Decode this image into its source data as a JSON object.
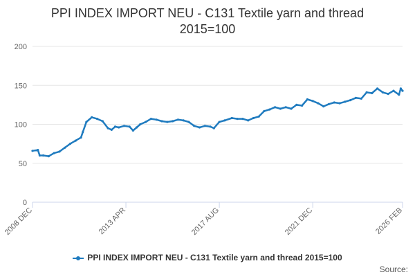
{
  "title_lines": [
    "PPI INDEX IMPORT NEU - C131 Textile yarn and thread",
    "2015=100"
  ],
  "credits": "Source:",
  "colors": {
    "series": "#1f7bbf",
    "grid": "#e6e6e6",
    "axis_text": "#666666"
  },
  "chart_data": {
    "type": "line",
    "title": "PPI INDEX IMPORT NEU - C131 Textile yarn and thread 2015=100",
    "xlabel": "",
    "ylabel": "",
    "ylim": [
      0,
      200
    ],
    "y_ticks": [
      0,
      50,
      100,
      150,
      200
    ],
    "x_range": [
      "2008-12",
      "2026-02"
    ],
    "x_tick_labels": [
      {
        "date": "2008-12",
        "label": "2008 DEC"
      },
      {
        "date": "2013-04",
        "label": "2013 APR"
      },
      {
        "date": "2017-08",
        "label": "2017 AUG"
      },
      {
        "date": "2021-12",
        "label": "2021 DEC"
      },
      {
        "date": "2026-02",
        "label": "2026 FEB"
      }
    ],
    "grid": true,
    "legend": "bottom-center",
    "series": [
      {
        "name": "PPI INDEX IMPORT NEU - C131 Textile yarn and thread 2015=100",
        "points": [
          [
            "2008-12",
            66
          ],
          [
            "2009-03",
            67
          ],
          [
            "2009-04",
            60
          ],
          [
            "2009-06",
            60
          ],
          [
            "2009-09",
            59
          ],
          [
            "2009-12",
            63
          ],
          [
            "2010-03",
            65
          ],
          [
            "2010-06",
            70
          ],
          [
            "2010-09",
            75
          ],
          [
            "2010-12",
            79
          ],
          [
            "2011-03",
            83
          ],
          [
            "2011-04",
            90
          ],
          [
            "2011-06",
            103
          ],
          [
            "2011-09",
            109
          ],
          [
            "2011-12",
            107
          ],
          [
            "2012-03",
            104
          ],
          [
            "2012-06",
            95
          ],
          [
            "2012-08",
            93
          ],
          [
            "2012-10",
            97
          ],
          [
            "2012-12",
            96
          ],
          [
            "2013-03",
            98
          ],
          [
            "2013-06",
            97
          ],
          [
            "2013-08",
            92
          ],
          [
            "2013-10",
            96
          ],
          [
            "2013-12",
            100
          ],
          [
            "2014-03",
            103
          ],
          [
            "2014-06",
            107
          ],
          [
            "2014-09",
            106
          ],
          [
            "2014-12",
            104
          ],
          [
            "2015-03",
            103
          ],
          [
            "2015-06",
            104
          ],
          [
            "2015-09",
            106
          ],
          [
            "2015-12",
            105
          ],
          [
            "2016-03",
            103
          ],
          [
            "2016-06",
            98
          ],
          [
            "2016-09",
            96
          ],
          [
            "2016-12",
            98
          ],
          [
            "2017-03",
            97
          ],
          [
            "2017-05",
            95
          ],
          [
            "2017-08",
            103
          ],
          [
            "2017-11",
            105
          ],
          [
            "2018-03",
            108
          ],
          [
            "2018-06",
            107
          ],
          [
            "2018-09",
            107
          ],
          [
            "2018-12",
            105
          ],
          [
            "2019-03",
            108
          ],
          [
            "2019-06",
            110
          ],
          [
            "2019-09",
            117
          ],
          [
            "2019-12",
            119
          ],
          [
            "2020-03",
            122
          ],
          [
            "2020-06",
            120
          ],
          [
            "2020-09",
            122
          ],
          [
            "2020-12",
            120
          ],
          [
            "2021-03",
            125
          ],
          [
            "2021-06",
            124
          ],
          [
            "2021-09",
            132
          ],
          [
            "2021-12",
            130
          ],
          [
            "2022-03",
            127
          ],
          [
            "2022-06",
            123
          ],
          [
            "2022-09",
            126
          ],
          [
            "2022-12",
            128
          ],
          [
            "2023-03",
            127
          ],
          [
            "2023-06",
            129
          ],
          [
            "2023-09",
            131
          ],
          [
            "2023-12",
            134
          ],
          [
            "2024-03",
            133
          ],
          [
            "2024-06",
            141
          ],
          [
            "2024-09",
            140
          ],
          [
            "2024-12",
            146
          ],
          [
            "2025-03",
            141
          ],
          [
            "2025-06",
            139
          ],
          [
            "2025-09",
            143
          ],
          [
            "2025-12",
            138
          ],
          [
            "2026-01",
            146
          ],
          [
            "2026-02",
            143
          ]
        ]
      }
    ]
  }
}
